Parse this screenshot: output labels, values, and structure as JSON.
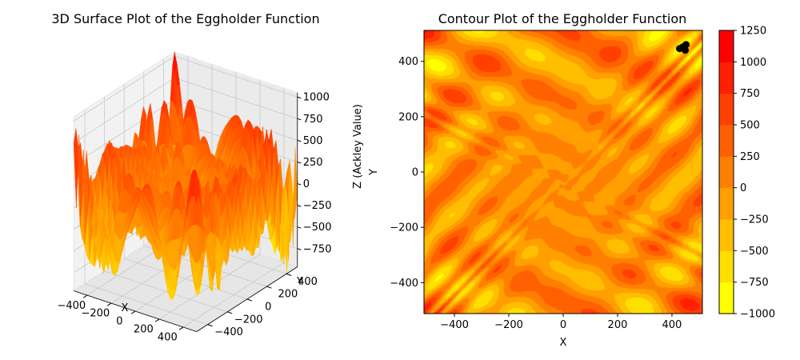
{
  "chart_data": [
    {
      "type": "surface3d",
      "title": "3D Surface Plot of the Eggholder Function",
      "xlabel": "X",
      "ylabel": "Y",
      "zlabel": "Z (Ackley Value)",
      "xlim": [
        -512,
        512
      ],
      "ylim": [
        -512,
        512
      ],
      "zlim": [
        -960,
        1050
      ],
      "x_ticks": [
        -400,
        -200,
        0,
        200,
        400
      ],
      "y_ticks": [
        -400,
        -200,
        0,
        200,
        400
      ],
      "z_ticks": [
        -750,
        -500,
        -250,
        0,
        250,
        500,
        750,
        1000
      ],
      "x_tick_labels": [
        "−400",
        "−200",
        "0",
        "200",
        "400"
      ],
      "y_tick_labels": [
        "−400",
        "−200",
        "0",
        "200",
        "400"
      ],
      "z_tick_labels": [
        "−750",
        "−500",
        "−250",
        "0",
        "250",
        "500",
        "750",
        "1000"
      ],
      "colormap": "autumn_r",
      "grid": true,
      "function": "eggholder"
    },
    {
      "type": "contour",
      "title": "Contour Plot of the Eggholder Function",
      "xlabel": "X",
      "ylabel": "Y",
      "xlim": [
        -512,
        512
      ],
      "ylim": [
        -512,
        512
      ],
      "x_ticks": [
        -400,
        -200,
        0,
        200,
        400
      ],
      "y_ticks": [
        -400,
        -200,
        0,
        200,
        400
      ],
      "x_tick_labels": [
        "−400",
        "−200",
        "0",
        "200",
        "400"
      ],
      "y_tick_labels": [
        "−400",
        "−200",
        "0",
        "200",
        "400"
      ],
      "colorbar_levels": [
        -1000,
        -750,
        -500,
        -250,
        0,
        250,
        500,
        750,
        1000,
        1250
      ],
      "colorbar_tick_labels": [
        "−1000",
        "−750",
        "−500",
        "−250",
        "0",
        "250",
        "500",
        "750",
        "1000",
        "1250"
      ],
      "colormap": "autumn_r",
      "marker": {
        "x": 440,
        "y": 452,
        "color": "#000000"
      },
      "function": "eggholder"
    }
  ]
}
